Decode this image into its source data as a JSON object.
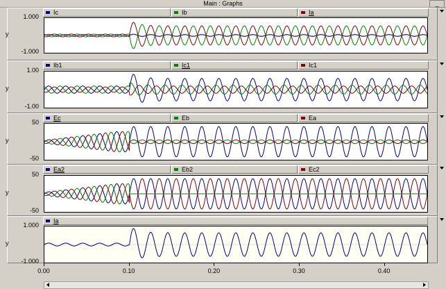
{
  "window": {
    "title": "Main : Graphs",
    "min_label": "_"
  },
  "panels": [
    {
      "id": "p1",
      "y_label": "y",
      "y_max_label": "1.000",
      "y_min_label": "-1.000",
      "legend": [
        {
          "label": "Ic",
          "color": "#000080",
          "underline": false
        },
        {
          "label": "Ib",
          "color": "#008000",
          "underline": false
        },
        {
          "label": "Ia",
          "color": "#800000",
          "underline": true
        }
      ]
    },
    {
      "id": "p2",
      "y_label": "y",
      "y_max_label": "1.00",
      "y_min_label": "-1.00",
      "legend": [
        {
          "label": "Ib1",
          "color": "#000080",
          "underline": false
        },
        {
          "label": "Ic1",
          "color": "#008000",
          "underline": true
        },
        {
          "label": "Ic1",
          "color": "#800000",
          "underline": false
        }
      ]
    },
    {
      "id": "p3",
      "y_label": "y",
      "y_max_label": "50",
      "y_min_label": "-50",
      "legend": [
        {
          "label": "Ec",
          "color": "#000080",
          "underline": true
        },
        {
          "label": "Eb",
          "color": "#008000",
          "underline": false
        },
        {
          "label": "Ea",
          "color": "#800000",
          "underline": false
        }
      ]
    },
    {
      "id": "p4",
      "y_label": "y",
      "y_max_label": "50",
      "y_min_label": "-50",
      "legend": [
        {
          "label": "Ea2",
          "color": "#000080",
          "underline": true
        },
        {
          "label": "Eb2",
          "color": "#008000",
          "underline": false
        },
        {
          "label": "Ec2",
          "color": "#800000",
          "underline": false
        }
      ]
    },
    {
      "id": "p5",
      "y_label": "y",
      "y_max_label": "1.000",
      "y_min_label": "-1.000",
      "legend": [
        {
          "label": "Ia",
          "color": "#000080",
          "underline": true
        }
      ]
    }
  ],
  "x_axis": {
    "ticks": [
      "0.00",
      "0.10",
      "0.20",
      "0.30",
      "0.40"
    ]
  },
  "chart_data": {
    "type": "line",
    "x_range": [
      0.0,
      0.45
    ],
    "event_time": 0.1,
    "signal_frequency_hz": 50,
    "plots": [
      {
        "id": "p1",
        "ylim": [
          -1.0,
          1.0
        ],
        "series": [
          {
            "name": "Ic",
            "color": "#000080",
            "pre_amp": 0.05,
            "post_amp": 0.05,
            "phase_deg": 0,
            "post_phase_deg": 0
          },
          {
            "name": "Ib",
            "color": "#008000",
            "pre_amp": 0.08,
            "post_amp": 0.55,
            "phase_deg": 120,
            "post_phase_deg": 180
          },
          {
            "name": "Ia",
            "color": "#800000",
            "pre_amp": 0.08,
            "post_amp": 0.55,
            "phase_deg": 240,
            "post_phase_deg": 0
          }
        ]
      },
      {
        "id": "p2",
        "ylim": [
          -1.0,
          1.0
        ],
        "series": [
          {
            "name": "Ib1",
            "color": "#000080",
            "pre_amp": 0.2,
            "post_amp": 0.62,
            "phase_deg": 0,
            "post_phase_deg": 0
          },
          {
            "name": "Ic1",
            "color": "#008000",
            "pre_amp": 0.2,
            "post_amp": 0.25,
            "phase_deg": 120,
            "post_phase_deg": 60
          },
          {
            "name": "Ic1",
            "color": "#800000",
            "pre_amp": 0.15,
            "post_amp": 0.2,
            "phase_deg": 240,
            "post_phase_deg": 240
          }
        ]
      },
      {
        "id": "p3",
        "ylim": [
          -50,
          50
        ],
        "series": [
          {
            "name": "Ec",
            "color": "#000080",
            "pre_amp": 28,
            "post_amp": 42,
            "phase_deg": 0,
            "post_phase_deg": 0
          },
          {
            "name": "Eb",
            "color": "#008000",
            "pre_amp": 28,
            "post_amp": 5,
            "phase_deg": 120,
            "post_phase_deg": 180
          },
          {
            "name": "Ea",
            "color": "#800000",
            "pre_amp": 28,
            "post_amp": 5,
            "phase_deg": 240,
            "post_phase_deg": 0
          }
        ]
      },
      {
        "id": "p4",
        "ylim": [
          -50,
          50
        ],
        "series": [
          {
            "name": "Ea2",
            "color": "#000080",
            "pre_amp": 28,
            "post_amp": 42,
            "phase_deg": 0,
            "post_phase_deg": 0
          },
          {
            "name": "Eb2",
            "color": "#008000",
            "pre_amp": 28,
            "post_amp": 0,
            "phase_deg": 120,
            "post_phase_deg": 0
          },
          {
            "name": "Ec2",
            "color": "#800000",
            "pre_amp": 28,
            "post_amp": 42,
            "phase_deg": 240,
            "post_phase_deg": 180
          }
        ]
      },
      {
        "id": "p5",
        "ylim": [
          -1.0,
          1.0
        ],
        "series": [
          {
            "name": "Ia",
            "color": "#000080",
            "pre_amp": 0.08,
            "post_amp": 0.65,
            "phase_deg": 0,
            "post_phase_deg": 0
          }
        ]
      }
    ]
  }
}
